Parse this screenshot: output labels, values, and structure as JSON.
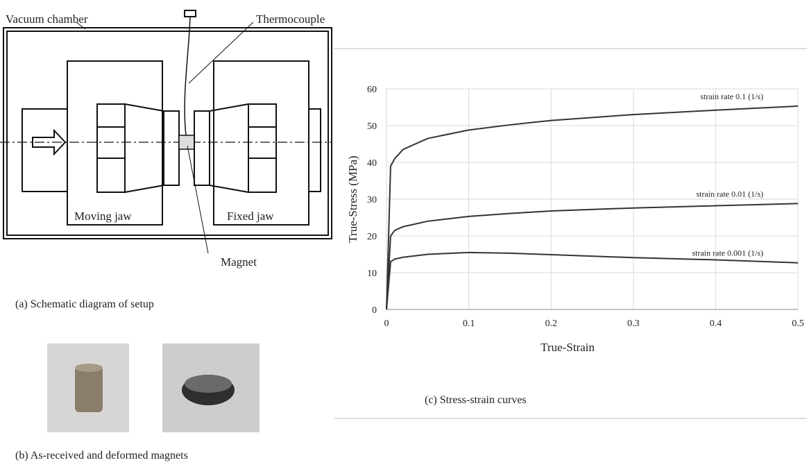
{
  "diagram": {
    "labels": {
      "vacuum_chamber": "Vacuum chamber",
      "thermocouple": "Thermocouple",
      "moving_jaw": "Moving jaw",
      "fixed_jaw": "Fixed jaw",
      "magnet": "Magnet"
    },
    "captions": {
      "a": "(a)   Schematic diagram of setup",
      "b": "(b)   As-received and deformed magnets",
      "c": "(c)   Stress-strain curves"
    }
  },
  "chart_data": {
    "type": "line",
    "xlabel": "True-Strain",
    "ylabel": "True-Stress (MPa)",
    "x": [
      0,
      0.005,
      0.01,
      0.02,
      0.05,
      0.1,
      0.15,
      0.2,
      0.3,
      0.4,
      0.5
    ],
    "series": [
      {
        "name": "strain rate 0.1 (1/s)",
        "color": "#333333",
        "values": [
          0,
          39,
          41,
          43.5,
          46.5,
          48.8,
          50.2,
          51.4,
          53,
          54.2,
          55.3
        ]
      },
      {
        "name": "strain rate 0.01 (1/s)",
        "color": "#333333",
        "values": [
          0,
          20,
          21.5,
          22.5,
          24,
          25.3,
          26.1,
          26.8,
          27.6,
          28.2,
          28.8
        ]
      },
      {
        "name": "strain rate 0.001 (1/s)",
        "color": "#333333",
        "values": [
          0,
          13,
          13.7,
          14.2,
          15,
          15.5,
          15.3,
          14.9,
          14.1,
          13.5,
          12.7
        ]
      }
    ],
    "xlim": [
      0,
      0.5
    ],
    "ylim": [
      0,
      60
    ],
    "xticks": [
      0,
      0.1,
      0.2,
      0.3,
      0.4,
      0.5
    ],
    "yticks": [
      0,
      10,
      20,
      30,
      40,
      50,
      60
    ],
    "grid": true
  }
}
